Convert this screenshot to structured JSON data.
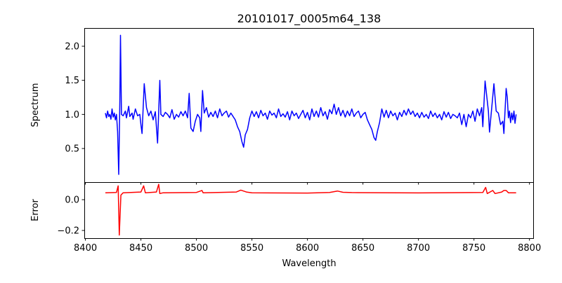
{
  "chart_data": [
    {
      "type": "line",
      "title": "20101017_0005m64_138",
      "xlabel": "",
      "ylabel": "Spectrum",
      "xlim": [
        8399,
        8804
      ],
      "ylim": [
        0.007,
        2.267
      ],
      "xticks": [
        8400,
        8450,
        8500,
        8550,
        8600,
        8650,
        8700,
        8750,
        8800
      ],
      "yticks": [
        0.5,
        1.0,
        1.5,
        2.0
      ],
      "ytick_labels": [
        "0.5",
        "1.0",
        "1.5",
        "2.0"
      ],
      "grid": false,
      "series": [
        {
          "name": "Spectrum",
          "color": "#0000ff",
          "points": [
            [
              8418,
              1.02
            ],
            [
              8419,
              0.95
            ],
            [
              8420,
              1.05
            ],
            [
              8421,
              0.97
            ],
            [
              8422,
              1.0
            ],
            [
              8423,
              0.93
            ],
            [
              8424,
              1.08
            ],
            [
              8425,
              0.96
            ],
            [
              8426,
              1.02
            ],
            [
              8427,
              0.92
            ],
            [
              8428,
              1.0
            ],
            [
              8429,
              0.75
            ],
            [
              8430,
              0.12
            ],
            [
              8431,
              1.2
            ],
            [
              8431.6,
              2.16
            ],
            [
              8432.5,
              1.0
            ],
            [
              8434,
              0.98
            ],
            [
              8436,
              1.05
            ],
            [
              8437,
              0.95
            ],
            [
              8439,
              1.12
            ],
            [
              8440,
              0.97
            ],
            [
              8442,
              1.02
            ],
            [
              8443,
              0.93
            ],
            [
              8445,
              1.08
            ],
            [
              8447,
              0.98
            ],
            [
              8449,
              1.0
            ],
            [
              8450,
              0.85
            ],
            [
              8451,
              0.72
            ],
            [
              8453,
              1.45
            ],
            [
              8455,
              1.1
            ],
            [
              8457,
              0.98
            ],
            [
              8459,
              1.05
            ],
            [
              8461,
              0.92
            ],
            [
              8463,
              1.04
            ],
            [
              8465,
              0.58
            ],
            [
              8467,
              1.5
            ],
            [
              8468,
              1.0
            ],
            [
              8470,
              0.97
            ],
            [
              8472,
              1.03
            ],
            [
              8474,
              1.0
            ],
            [
              8476,
              0.95
            ],
            [
              8478,
              1.07
            ],
            [
              8480,
              0.93
            ],
            [
              8482,
              1.0
            ],
            [
              8484,
              0.96
            ],
            [
              8486,
              1.04
            ],
            [
              8488,
              0.98
            ],
            [
              8490,
              1.05
            ],
            [
              8492,
              0.95
            ],
            [
              8493.5,
              1.31
            ],
            [
              8495,
              0.8
            ],
            [
              8497,
              0.75
            ],
            [
              8499,
              0.9
            ],
            [
              8501,
              1.0
            ],
            [
              8503,
              0.95
            ],
            [
              8504,
              0.75
            ],
            [
              8505.5,
              1.35
            ],
            [
              8507,
              1.02
            ],
            [
              8509,
              1.1
            ],
            [
              8511,
              0.96
            ],
            [
              8513,
              1.03
            ],
            [
              8515,
              0.97
            ],
            [
              8517,
              1.05
            ],
            [
              8519,
              0.95
            ],
            [
              8521,
              1.08
            ],
            [
              8523,
              0.98
            ],
            [
              8525,
              1.02
            ],
            [
              8527,
              1.05
            ],
            [
              8529,
              0.96
            ],
            [
              8531,
              1.02
            ],
            [
              8533,
              0.97
            ],
            [
              8535,
              0.92
            ],
            [
              8537,
              0.82
            ],
            [
              8539,
              0.75
            ],
            [
              8541,
              0.6
            ],
            [
              8542.5,
              0.52
            ],
            [
              8544,
              0.7
            ],
            [
              8546,
              0.78
            ],
            [
              8548,
              0.95
            ],
            [
              8550,
              1.05
            ],
            [
              8552,
              0.97
            ],
            [
              8554,
              1.04
            ],
            [
              8556,
              0.95
            ],
            [
              8558,
              1.06
            ],
            [
              8560,
              0.98
            ],
            [
              8562,
              1.02
            ],
            [
              8564,
              0.93
            ],
            [
              8566,
              1.05
            ],
            [
              8568,
              0.99
            ],
            [
              8570,
              1.02
            ],
            [
              8572,
              0.95
            ],
            [
              8574,
              1.08
            ],
            [
              8576,
              0.97
            ],
            [
              8578,
              1.01
            ],
            [
              8580,
              0.96
            ],
            [
              8582,
              1.04
            ],
            [
              8584,
              0.92
            ],
            [
              8586,
              1.05
            ],
            [
              8588,
              0.98
            ],
            [
              8590,
              1.02
            ],
            [
              8592,
              0.94
            ],
            [
              8594,
              1.0
            ],
            [
              8596,
              1.06
            ],
            [
              8598,
              0.95
            ],
            [
              8600,
              1.03
            ],
            [
              8602,
              0.92
            ],
            [
              8604,
              1.08
            ],
            [
              8606,
              0.97
            ],
            [
              8608,
              1.05
            ],
            [
              8610,
              0.96
            ],
            [
              8612,
              1.1
            ],
            [
              8614,
              0.98
            ],
            [
              8616,
              1.04
            ],
            [
              8618,
              0.93
            ],
            [
              8620,
              1.07
            ],
            [
              8622,
              1.01
            ],
            [
              8624,
              1.15
            ],
            [
              8626,
              1.0
            ],
            [
              8628,
              1.1
            ],
            [
              8630,
              0.98
            ],
            [
              8632,
              1.06
            ],
            [
              8634,
              0.96
            ],
            [
              8636,
              1.05
            ],
            [
              8638,
              0.98
            ],
            [
              8640,
              1.08
            ],
            [
              8642,
              0.97
            ],
            [
              8644,
              1.02
            ],
            [
              8646,
              1.05
            ],
            [
              8648,
              0.95
            ],
            [
              8650,
              1.0
            ],
            [
              8652,
              1.03
            ],
            [
              8654,
              0.92
            ],
            [
              8656,
              0.85
            ],
            [
              8658,
              0.78
            ],
            [
              8660,
              0.66
            ],
            [
              8661.5,
              0.62
            ],
            [
              8663,
              0.75
            ],
            [
              8665,
              0.88
            ],
            [
              8667,
              1.08
            ],
            [
              8669,
              0.96
            ],
            [
              8671,
              1.06
            ],
            [
              8673,
              0.95
            ],
            [
              8675,
              1.05
            ],
            [
              8677,
              0.98
            ],
            [
              8679,
              1.02
            ],
            [
              8681,
              0.92
            ],
            [
              8683,
              1.03
            ],
            [
              8685,
              0.97
            ],
            [
              8687,
              1.06
            ],
            [
              8689,
              0.99
            ],
            [
              8691,
              1.08
            ],
            [
              8693,
              1.0
            ],
            [
              8695,
              1.05
            ],
            [
              8697,
              0.97
            ],
            [
              8699,
              1.02
            ],
            [
              8701,
              0.95
            ],
            [
              8703,
              1.03
            ],
            [
              8705,
              0.96
            ],
            [
              8707,
              1.0
            ],
            [
              8709,
              0.94
            ],
            [
              8711,
              1.05
            ],
            [
              8713,
              0.97
            ],
            [
              8715,
              1.02
            ],
            [
              8717,
              0.95
            ],
            [
              8719,
              1.0
            ],
            [
              8721,
              0.92
            ],
            [
              8723,
              1.04
            ],
            [
              8725,
              0.96
            ],
            [
              8727,
              1.03
            ],
            [
              8729,
              0.94
            ],
            [
              8731,
              1.0
            ],
            [
              8733,
              0.98
            ],
            [
              8735,
              0.95
            ],
            [
              8737,
              1.02
            ],
            [
              8739,
              0.85
            ],
            [
              8741,
              1.0
            ],
            [
              8743,
              0.82
            ],
            [
              8745,
              1.0
            ],
            [
              8747,
              0.95
            ],
            [
              8749,
              1.05
            ],
            [
              8751,
              0.9
            ],
            [
              8753,
              1.08
            ],
            [
              8755,
              0.98
            ],
            [
              8757,
              1.1
            ],
            [
              8758,
              0.82
            ],
            [
              8760,
              1.49
            ],
            [
              8762,
              1.2
            ],
            [
              8763,
              1.05
            ],
            [
              8764,
              0.74
            ],
            [
              8766,
              1.1
            ],
            [
              8768,
              1.45
            ],
            [
              8770,
              1.05
            ],
            [
              8772,
              1.02
            ],
            [
              8774,
              0.85
            ],
            [
              8776,
              0.9
            ],
            [
              8777,
              0.72
            ],
            [
              8779,
              1.38
            ],
            [
              8780,
              1.25
            ],
            [
              8781,
              0.95
            ],
            [
              8782,
              1.05
            ],
            [
              8783,
              0.88
            ],
            [
              8784,
              1.02
            ],
            [
              8785,
              0.92
            ],
            [
              8786,
              1.05
            ],
            [
              8787,
              0.87
            ],
            [
              8788,
              1.0
            ]
          ]
        }
      ]
    },
    {
      "type": "line",
      "xlabel": "Wavelength",
      "ylabel": "Error",
      "xlim": [
        8399,
        8804
      ],
      "ylim": [
        -0.25,
        0.114
      ],
      "xticks": [
        8400,
        8450,
        8500,
        8550,
        8600,
        8650,
        8700,
        8750,
        8800
      ],
      "xtick_labels": [
        "8400",
        "8450",
        "8500",
        "8550",
        "8600",
        "8650",
        "8700",
        "8750",
        "8800"
      ],
      "yticks": [
        -0.2,
        0.0
      ],
      "ytick_labels": [
        "−0.2",
        "0.0"
      ],
      "grid": false,
      "series": [
        {
          "name": "Error",
          "color": "#ff0000",
          "points": [
            [
              8418,
              0.045
            ],
            [
              8428,
              0.047
            ],
            [
              8429.5,
              0.09
            ],
            [
              8430.5,
              -0.23
            ],
            [
              8432,
              0.03
            ],
            [
              8434,
              0.045
            ],
            [
              8450,
              0.05
            ],
            [
              8452.5,
              0.09
            ],
            [
              8454,
              0.045
            ],
            [
              8464,
              0.05
            ],
            [
              8466,
              0.1
            ],
            [
              8467,
              0.04
            ],
            [
              8470,
              0.045
            ],
            [
              8500,
              0.047
            ],
            [
              8505,
              0.06
            ],
            [
              8506,
              0.045
            ],
            [
              8536,
              0.05
            ],
            [
              8540,
              0.062
            ],
            [
              8545,
              0.05
            ],
            [
              8550,
              0.045
            ],
            [
              8600,
              0.043
            ],
            [
              8620,
              0.047
            ],
            [
              8627,
              0.056
            ],
            [
              8632,
              0.048
            ],
            [
              8640,
              0.046
            ],
            [
              8700,
              0.044
            ],
            [
              8758,
              0.047
            ],
            [
              8760.5,
              0.08
            ],
            [
              8762,
              0.04
            ],
            [
              8767,
              0.06
            ],
            [
              8769,
              0.04
            ],
            [
              8775,
              0.05
            ],
            [
              8777,
              0.06
            ],
            [
              8779,
              0.06
            ],
            [
              8781,
              0.045
            ],
            [
              8788,
              0.045
            ]
          ]
        }
      ]
    }
  ]
}
